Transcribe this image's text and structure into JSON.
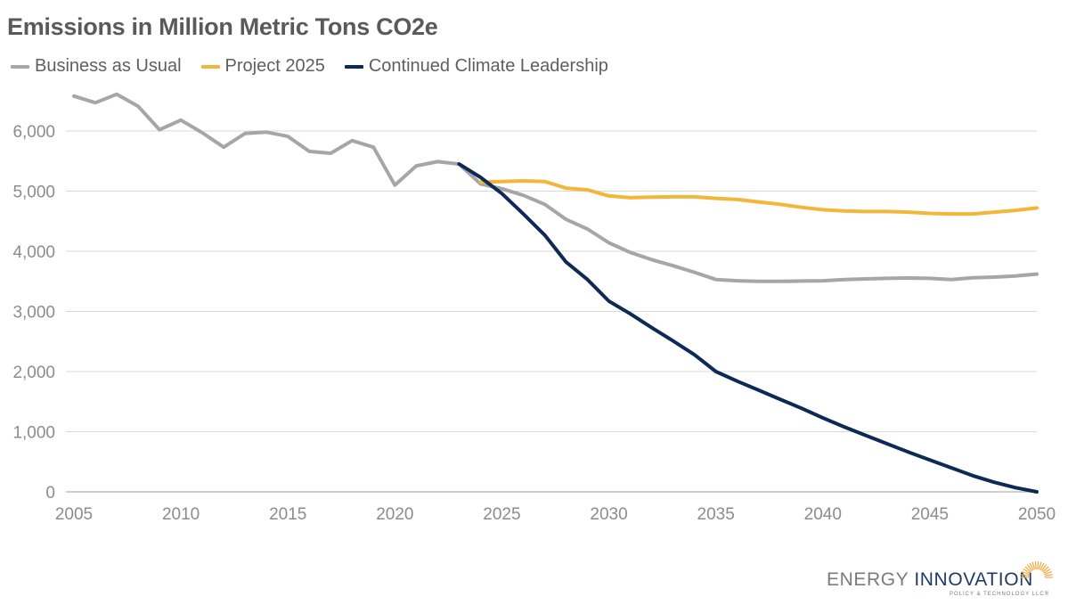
{
  "chart_data": {
    "type": "line",
    "title": "Emissions in Million Metric Tons CO2e",
    "xlabel": "",
    "ylabel": "",
    "xlim": [
      2005,
      2050
    ],
    "ylim": [
      0,
      6800
    ],
    "x_ticks": [
      "2005",
      "2010",
      "2015",
      "2020",
      "2025",
      "2030",
      "2035",
      "2040",
      "2045",
      "2050"
    ],
    "y_ticks": [
      "0",
      "1,000",
      "2,000",
      "3,000",
      "4,000",
      "5,000",
      "6,000"
    ],
    "grid": "horizontal",
    "legend_position": "top-left",
    "series": [
      {
        "name": "Business as Usual",
        "color": "#a6a6a6",
        "x": [
          2005,
          2006,
          2007,
          2008,
          2009,
          2010,
          2011,
          2012,
          2013,
          2014,
          2015,
          2016,
          2017,
          2018,
          2019,
          2020,
          2021,
          2022,
          2023,
          2024,
          2025,
          2026,
          2027,
          2028,
          2029,
          2030,
          2031,
          2032,
          2033,
          2034,
          2035,
          2036,
          2037,
          2038,
          2039,
          2040,
          2041,
          2042,
          2043,
          2044,
          2045,
          2046,
          2047,
          2048,
          2049,
          2050
        ],
        "y": [
          6580,
          6470,
          6610,
          6410,
          6020,
          6180,
          5970,
          5730,
          5960,
          5980,
          5910,
          5660,
          5630,
          5840,
          5730,
          5100,
          5420,
          5490,
          5450,
          5120,
          5040,
          4930,
          4780,
          4530,
          4370,
          4140,
          3980,
          3860,
          3760,
          3650,
          3530,
          3510,
          3500,
          3500,
          3505,
          3510,
          3530,
          3540,
          3550,
          3555,
          3550,
          3530,
          3560,
          3570,
          3590,
          3620
        ]
      },
      {
        "name": "Project 2025",
        "color": "#f3b63b",
        "x": [
          2024,
          2025,
          2026,
          2027,
          2028,
          2029,
          2030,
          2031,
          2032,
          2033,
          2034,
          2035,
          2036,
          2037,
          2038,
          2039,
          2040,
          2041,
          2042,
          2043,
          2044,
          2045,
          2046,
          2047,
          2048,
          2049,
          2050
        ],
        "y": [
          5150,
          5160,
          5170,
          5160,
          5050,
          5020,
          4920,
          4890,
          4900,
          4905,
          4905,
          4880,
          4860,
          4820,
          4780,
          4730,
          4690,
          4670,
          4660,
          4660,
          4650,
          4630,
          4620,
          4620,
          4650,
          4680,
          4720
        ]
      },
      {
        "name": "Continued Climate Leadership",
        "color": "#0d2a57",
        "x": [
          2023,
          2024,
          2025,
          2026,
          2027,
          2028,
          2029,
          2030,
          2031,
          2032,
          2033,
          2034,
          2035,
          2036,
          2037,
          2038,
          2039,
          2040,
          2041,
          2042,
          2043,
          2044,
          2045,
          2046,
          2047,
          2048,
          2049,
          2050
        ],
        "y": [
          5450,
          5230,
          4960,
          4620,
          4270,
          3820,
          3530,
          3170,
          2960,
          2730,
          2510,
          2280,
          2000,
          1840,
          1690,
          1540,
          1390,
          1230,
          1080,
          940,
          800,
          660,
          530,
          400,
          270,
          160,
          70,
          0
        ]
      }
    ]
  },
  "logo": {
    "name_part1": "ENERGY",
    "name_part2": "INNOVATION",
    "tagline": "POLICY & TECHNOLOGY LLC®"
  }
}
